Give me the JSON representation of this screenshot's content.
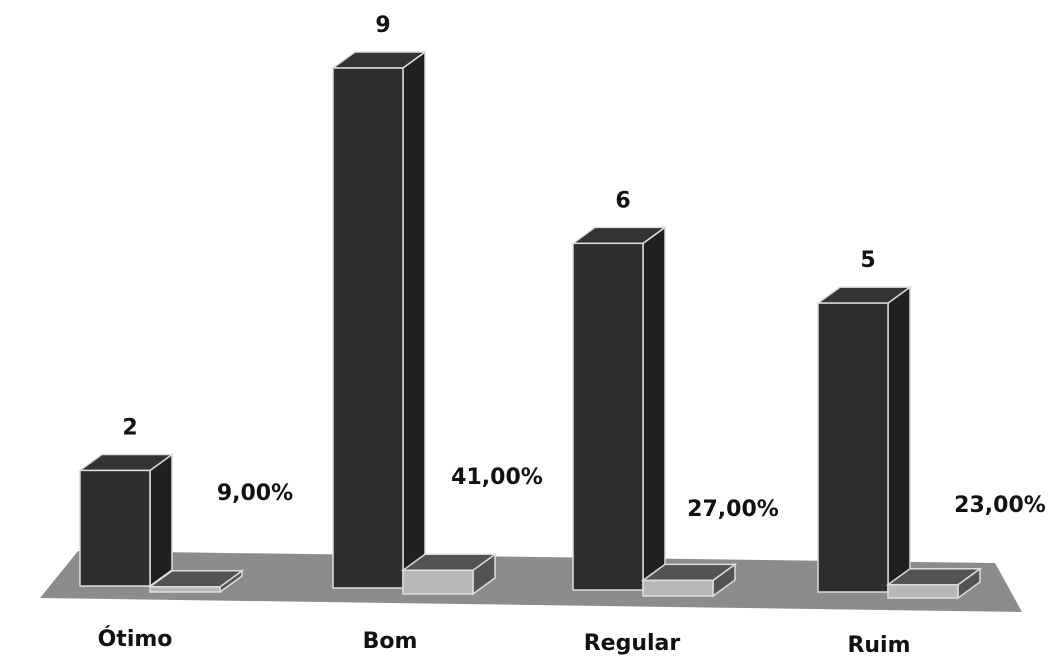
{
  "chart_data": {
    "type": "bar3d",
    "categories": [
      "Ótimo",
      "Bom",
      "Regular",
      "Ruim"
    ],
    "series": [
      {
        "color": "#2e2e2e",
        "values": [
          2,
          9,
          6,
          5
        ]
      },
      {
        "color": "#b8b8b8",
        "values": [
          0.09,
          0.41,
          0.27,
          0.23
        ],
        "value_labels": [
          "9,00%",
          "41,00%",
          "27,00%",
          "23,00%"
        ]
      }
    ]
  }
}
